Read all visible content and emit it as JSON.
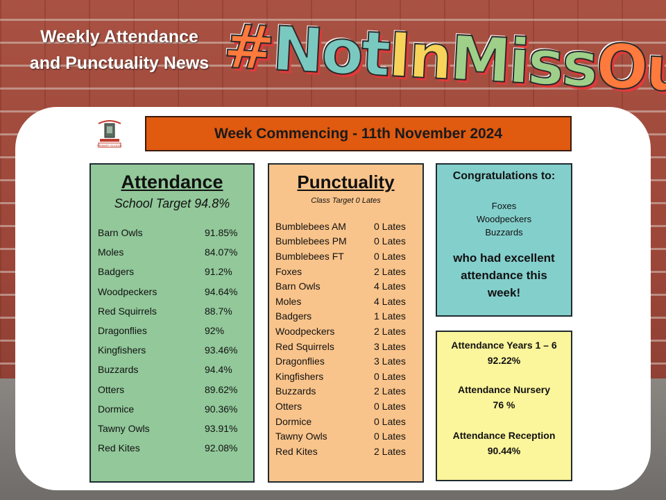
{
  "header": {
    "headline_line1": "Weekly Attendance",
    "headline_line2": "and Punctuality News",
    "hashtag_parts": [
      "#",
      "Not",
      "In",
      "Miss",
      "Out"
    ]
  },
  "logo": {
    "icon": "school-crest-icon",
    "text": "PRIMARY SCHOOL"
  },
  "week_banner": "Week Commencing - 11th November 2024",
  "attendance": {
    "title": "Attendance",
    "target": "School Target 94.8%",
    "rows": [
      {
        "class": "Barn Owls",
        "value": "91.85%"
      },
      {
        "class": "Moles",
        "value": "84.07%"
      },
      {
        "class": "Badgers",
        "value": "91.2%"
      },
      {
        "class": "Woodpeckers",
        "value": "94.64%"
      },
      {
        "class": "Red Squirrels",
        "value": "88.7%"
      },
      {
        "class": "Dragonflies",
        "value": "92%"
      },
      {
        "class": "Kingfishers",
        "value": "93.46%"
      },
      {
        "class": "Buzzards",
        "value": "94.4%"
      },
      {
        "class": "Otters",
        "value": "89.62%"
      },
      {
        "class": "Dormice",
        "value": "90.36%"
      },
      {
        "class": "Tawny Owls",
        "value": "93.91%"
      },
      {
        "class": "Red Kites",
        "value": "92.08%"
      }
    ]
  },
  "punctuality": {
    "title": "Punctuality",
    "target": "Class Target 0 Lates",
    "rows": [
      {
        "class": "Bumblebees AM",
        "value": "0 Lates"
      },
      {
        "class": "Bumblebees PM",
        "value": "0 Lates"
      },
      {
        "class": "Bumblebees FT",
        "value": "0 Lates"
      },
      {
        "class": "Foxes",
        "value": "2 Lates"
      },
      {
        "class": "Barn Owls",
        "value": "4 Lates"
      },
      {
        "class": "Moles",
        "value": "4 Lates"
      },
      {
        "class": "Badgers",
        "value": "1 Lates"
      },
      {
        "class": "Woodpeckers",
        "value": "2 Lates"
      },
      {
        "class": "Red Squirrels",
        "value": "3 Lates"
      },
      {
        "class": "Dragonflies",
        "value": "3 Lates"
      },
      {
        "class": "Kingfishers",
        "value": "0 Lates"
      },
      {
        "class": "Buzzards",
        "value": "2 Lates"
      },
      {
        "class": "Otters",
        "value": "0 Lates"
      },
      {
        "class": "Dormice",
        "value": "0 Lates"
      },
      {
        "class": "Tawny Owls",
        "value": "0 Lates"
      },
      {
        "class": "Red Kites",
        "value": "2 Lates"
      }
    ]
  },
  "congratulations": {
    "title": "Congratulations to:",
    "names": [
      "Foxes",
      "Woodpeckers",
      "Buzzards"
    ],
    "message": "who had excellent attendance this week!"
  },
  "totals": [
    {
      "label": "Attendance Years 1 – 6",
      "value": "92.22%"
    },
    {
      "label": "Attendance Nursery",
      "value": "76 %"
    },
    {
      "label": "Attendance Reception",
      "value": "90.44%"
    }
  ],
  "colors": {
    "banner": "#e05a10",
    "attendance_panel": "#92c89a",
    "punctuality_panel": "#f9c48b",
    "congrats_panel": "#83cfcc",
    "totals_panel": "#fbf59b",
    "brick": "#9a4a3c"
  }
}
